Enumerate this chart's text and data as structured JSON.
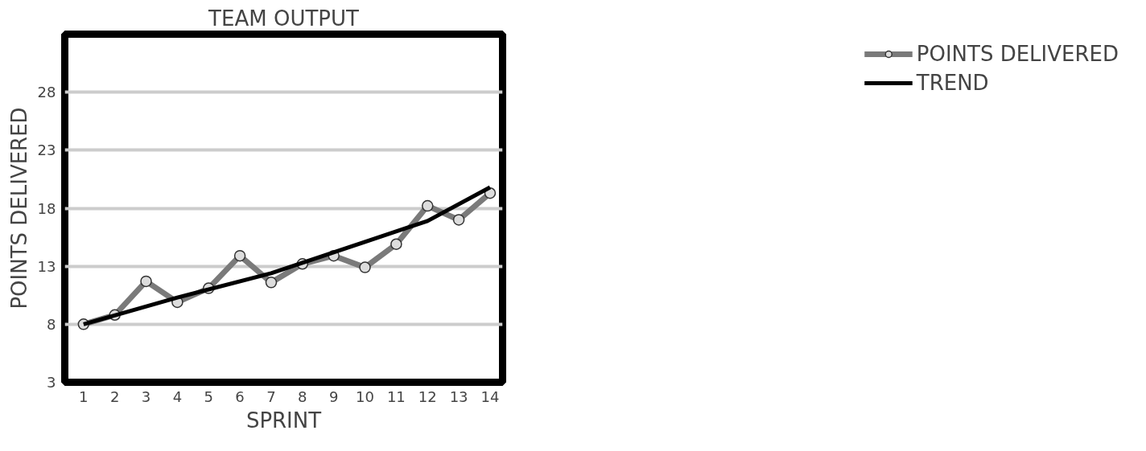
{
  "chart_data": {
    "type": "line",
    "title": "TEAM OUTPUT",
    "xlabel": "SPRINT",
    "ylabel": "POINTS DELIVERED",
    "x": [
      1,
      2,
      3,
      4,
      5,
      6,
      7,
      8,
      9,
      10,
      11,
      12,
      13,
      14
    ],
    "series": [
      {
        "name": "POINTS DELIVERED",
        "color": "#7a7a7a",
        "marker": "circle",
        "values": [
          8,
          8.8,
          11.7,
          9.9,
          11.1,
          13.9,
          11.6,
          13.2,
          13.9,
          12.9,
          14.9,
          18.2,
          17,
          19.3
        ]
      },
      {
        "name": "TREND",
        "color": "#000000",
        "marker": "none",
        "x": [
          1,
          4,
          7,
          10,
          12,
          14
        ],
        "values": [
          8,
          10.3,
          12.4,
          15.1,
          16.9,
          19.8
        ]
      }
    ],
    "xlim": [
      0.4,
      14.4
    ],
    "xticks": [
      1,
      2,
      3,
      4,
      5,
      6,
      7,
      8,
      9,
      10,
      11,
      12,
      13,
      14
    ],
    "ylim": [
      3,
      33
    ],
    "yticks": [
      3,
      8,
      13,
      18,
      23,
      28
    ],
    "grid": "y",
    "legend": "right",
    "line_style": "solid"
  }
}
